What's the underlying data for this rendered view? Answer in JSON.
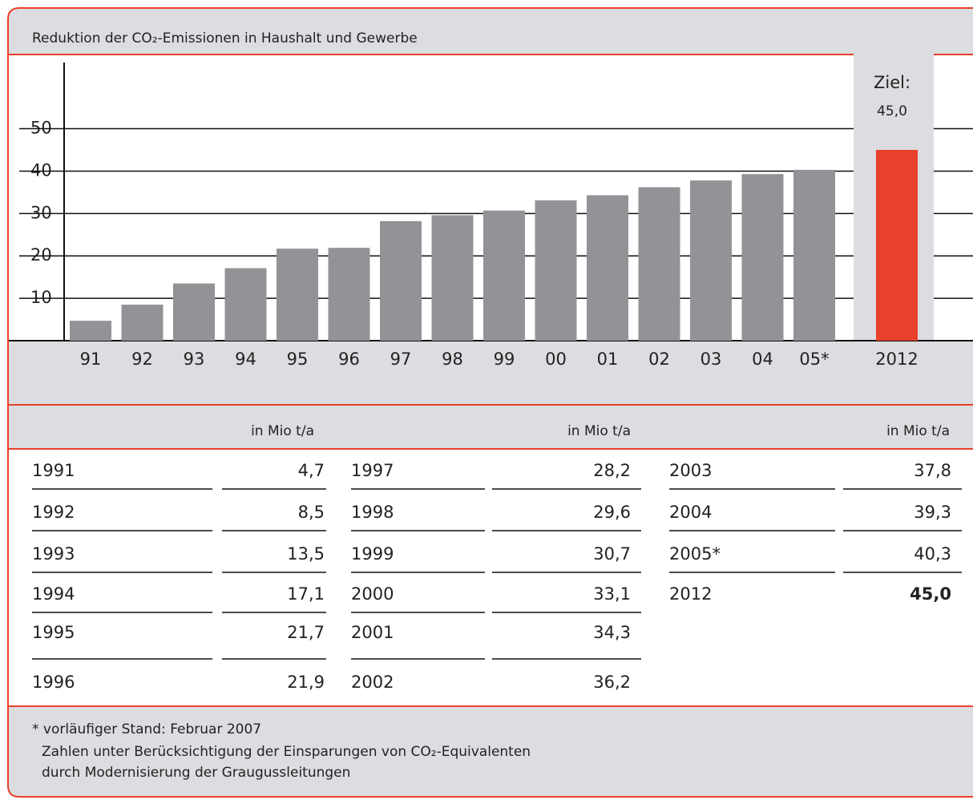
{
  "chart_data": {
    "type": "bar",
    "title": "Reduktion der CO₂-Emissionen in Haushalt und Gewerbe",
    "categories": [
      "91",
      "92",
      "93",
      "94",
      "95",
      "96",
      "97",
      "98",
      "99",
      "00",
      "01",
      "02",
      "03",
      "04",
      "05*",
      "2012"
    ],
    "values": [
      4.7,
      8.5,
      13.5,
      17.1,
      21.7,
      21.9,
      28.2,
      29.6,
      30.7,
      33.1,
      34.3,
      36.2,
      37.8,
      39.3,
      40.3,
      45.0
    ],
    "value_labels": [
      "4,7",
      "8,5",
      "13,5",
      "17,1",
      "21,7",
      "21,9",
      "28,2",
      "29,6",
      "30,7",
      "33,1",
      "34,3",
      "36,2",
      "37,8",
      "39,3",
      "40,3",
      "45,0"
    ],
    "colors": [
      "#939397",
      "#939397",
      "#939397",
      "#939397",
      "#939397",
      "#939397",
      "#939397",
      "#939397",
      "#939397",
      "#939397",
      "#939397",
      "#939397",
      "#939397",
      "#939397",
      "#939397",
      "#e8412c"
    ],
    "annotation": "Ziel:",
    "ylim": [
      0,
      67.5
    ],
    "yticks": [
      10,
      20,
      30,
      40,
      50
    ],
    "grid": true
  },
  "table": {
    "unit": "in Mio t/a",
    "years": [
      "1991",
      "1992",
      "1993",
      "1994",
      "1995",
      "1996",
      "1997",
      "1998",
      "1999",
      "2000",
      "2001",
      "2002",
      "2003",
      "2004",
      "2005*",
      "2012"
    ]
  },
  "footnote": [
    "* vorläufiger Stand: Februar 2007",
    "Zahlen unter Berücksichtigung der Einsparungen von CO₂-Equivalenten",
    "durch Modernisierung der Graugussleitungen"
  ]
}
